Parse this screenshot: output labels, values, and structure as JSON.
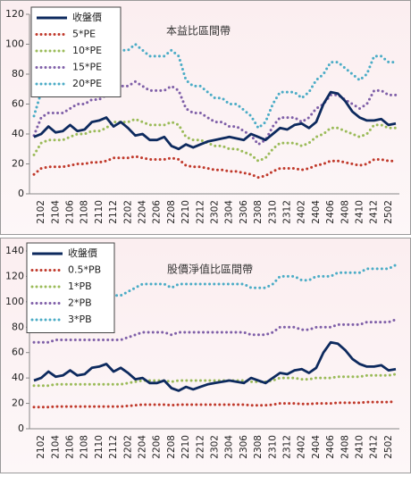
{
  "chart_data": [
    {
      "type": "line",
      "title": "本益比區間帶",
      "categories": [
        null,
        "2102",
        null,
        "2104",
        null,
        "2106",
        null,
        "2108",
        null,
        "2110",
        null,
        "2112",
        null,
        "2202",
        null,
        "2204",
        null,
        "2206",
        null,
        "2208",
        null,
        "2210",
        null,
        "2212",
        null,
        "2302",
        null,
        "2304",
        null,
        "2306",
        null,
        "2308",
        null,
        "2310",
        null,
        "2312",
        null,
        "2402",
        null,
        "2404",
        null,
        "2406",
        null,
        "2408",
        null,
        "2410",
        null,
        "2412",
        null,
        "2502",
        null
      ],
      "series": [
        {
          "name": "收盤價",
          "color": "#0d2a5e",
          "style": "solid",
          "values": [
            38,
            40,
            45,
            41,
            42,
            46,
            42,
            43,
            48,
            49,
            51,
            45,
            48,
            44,
            39,
            40,
            36,
            36,
            38,
            32,
            30,
            33,
            31,
            33,
            35,
            36,
            37,
            38,
            37,
            36,
            40,
            38,
            36,
            40,
            44,
            43,
            46,
            47,
            44,
            48,
            60,
            68,
            67,
            62,
            55,
            51,
            49,
            49,
            50,
            46,
            47
          ]
        },
        {
          "name": "5*PE",
          "color": "#c0392b",
          "style": "dotted",
          "values": [
            13,
            17,
            18,
            18,
            18,
            19,
            20,
            20,
            21,
            21,
            22,
            24,
            24,
            24,
            25,
            24,
            23,
            23,
            23,
            24,
            23,
            19,
            18,
            18,
            17,
            16,
            16,
            15,
            15,
            14,
            13,
            11,
            12,
            15,
            17,
            17,
            17,
            16,
            17,
            19,
            20,
            22,
            22,
            21,
            20,
            19,
            20,
            23,
            23,
            22,
            22
          ]
        },
        {
          "name": "10*PE",
          "color": "#9bbb59",
          "style": "dotted",
          "values": [
            26,
            34,
            36,
            36,
            36,
            38,
            40,
            40,
            42,
            42,
            44,
            48,
            48,
            48,
            50,
            48,
            46,
            46,
            46,
            48,
            46,
            38,
            36,
            36,
            34,
            32,
            32,
            30,
            30,
            28,
            26,
            22,
            24,
            30,
            34,
            34,
            34,
            32,
            34,
            38,
            40,
            44,
            44,
            42,
            40,
            38,
            40,
            46,
            46,
            44,
            44
          ]
        },
        {
          "name": "15*PE",
          "color": "#7f5fa8",
          "style": "dotted",
          "values": [
            39,
            51,
            54,
            54,
            54,
            57,
            60,
            60,
            63,
            63,
            66,
            72,
            72,
            72,
            75,
            72,
            69,
            69,
            69,
            72,
            69,
            57,
            54,
            54,
            51,
            48,
            48,
            45,
            45,
            42,
            39,
            33,
            36,
            45,
            51,
            51,
            51,
            48,
            51,
            57,
            60,
            66,
            66,
            63,
            60,
            57,
            60,
            69,
            69,
            66,
            66
          ]
        },
        {
          "name": "20*PE",
          "color": "#4bacc6",
          "style": "dotted",
          "values": [
            52,
            68,
            72,
            72,
            72,
            76,
            80,
            80,
            84,
            84,
            88,
            96,
            96,
            96,
            100,
            96,
            92,
            92,
            92,
            96,
            92,
            76,
            72,
            72,
            68,
            64,
            64,
            60,
            60,
            56,
            52,
            44,
            48,
            60,
            68,
            68,
            68,
            64,
            68,
            76,
            80,
            88,
            88,
            84,
            80,
            76,
            80,
            92,
            92,
            88,
            88
          ]
        }
      ],
      "ylim": [
        0,
        120
      ],
      "yticks": [
        0,
        20,
        40,
        60,
        80,
        100,
        120
      ]
    },
    {
      "type": "line",
      "title": "股價淨值比區間帶",
      "categories": [
        null,
        "2102",
        null,
        "2104",
        null,
        "2106",
        null,
        "2108",
        null,
        "2110",
        null,
        "2112",
        null,
        "2202",
        null,
        "2204",
        null,
        "2206",
        null,
        "2208",
        null,
        "2210",
        null,
        "2212",
        null,
        "2302",
        null,
        "2304",
        null,
        "2306",
        null,
        "2308",
        null,
        "2310",
        null,
        "2312",
        null,
        "2402",
        null,
        "2404",
        null,
        "2406",
        null,
        "2408",
        null,
        "2410",
        null,
        "2412",
        null,
        "2502",
        null
      ],
      "series": [
        {
          "name": "收盤價",
          "color": "#0d2a5e",
          "style": "solid",
          "values": [
            38,
            40,
            45,
            41,
            42,
            46,
            42,
            43,
            48,
            49,
            51,
            45,
            48,
            44,
            39,
            40,
            36,
            36,
            38,
            32,
            30,
            33,
            31,
            33,
            35,
            36,
            37,
            38,
            37,
            36,
            40,
            38,
            36,
            40,
            44,
            43,
            46,
            47,
            44,
            48,
            60,
            68,
            67,
            62,
            55,
            51,
            49,
            49,
            50,
            46,
            47
          ]
        },
        {
          "name": "0.5*PB",
          "color": "#c0392b",
          "style": "dotted",
          "values": [
            17,
            17,
            17,
            17.5,
            17.5,
            17.5,
            17.5,
            17.5,
            17.5,
            17.5,
            17.5,
            17.5,
            17.5,
            18,
            18.5,
            19,
            19,
            19,
            19,
            18.5,
            19,
            19,
            19,
            19,
            19,
            19,
            19,
            19,
            19,
            19,
            18.5,
            18.5,
            18.5,
            19,
            20,
            20,
            20,
            19.5,
            19.5,
            20,
            20,
            20,
            20.5,
            20.5,
            20.5,
            20.5,
            21,
            21,
            21,
            21,
            21.5
          ]
        },
        {
          "name": "1*PB",
          "color": "#9bbb59",
          "style": "dotted",
          "values": [
            34,
            34,
            34,
            35,
            35,
            35,
            35,
            35,
            35,
            35,
            35,
            35,
            35,
            36,
            37,
            38,
            38,
            38,
            38,
            37,
            38,
            38,
            38,
            38,
            38,
            38,
            38,
            38,
            38,
            38,
            37,
            37,
            37,
            38,
            40,
            40,
            40,
            39,
            39,
            40,
            40,
            40,
            41,
            41,
            41,
            41,
            42,
            42,
            42,
            42,
            43
          ]
        },
        {
          "name": "2*PB",
          "color": "#7f5fa8",
          "style": "dotted",
          "values": [
            68,
            68,
            68,
            70,
            70,
            70,
            70,
            70,
            70,
            70,
            70,
            70,
            70,
            72,
            74,
            76,
            76,
            76,
            76,
            74,
            76,
            76,
            76,
            76,
            76,
            76,
            76,
            76,
            76,
            76,
            74,
            74,
            74,
            76,
            80,
            80,
            80,
            78,
            78,
            80,
            80,
            80,
            82,
            82,
            82,
            82,
            84,
            84,
            84,
            84,
            86
          ]
        },
        {
          "name": "3*PB",
          "color": "#4bacc6",
          "style": "dotted",
          "values": [
            102,
            102,
            102,
            105,
            105,
            105,
            105,
            105,
            105,
            105,
            105,
            105,
            105,
            108,
            111,
            114,
            114,
            114,
            114,
            111,
            114,
            114,
            114,
            114,
            114,
            114,
            114,
            114,
            114,
            114,
            111,
            111,
            111,
            114,
            120,
            120,
            120,
            117,
            117,
            120,
            120,
            120,
            123,
            123,
            123,
            123,
            126,
            126,
            126,
            126,
            129
          ]
        }
      ],
      "ylim": [
        0,
        140
      ],
      "yticks": [
        0,
        20,
        40,
        60,
        80,
        100,
        120,
        140
      ]
    }
  ]
}
